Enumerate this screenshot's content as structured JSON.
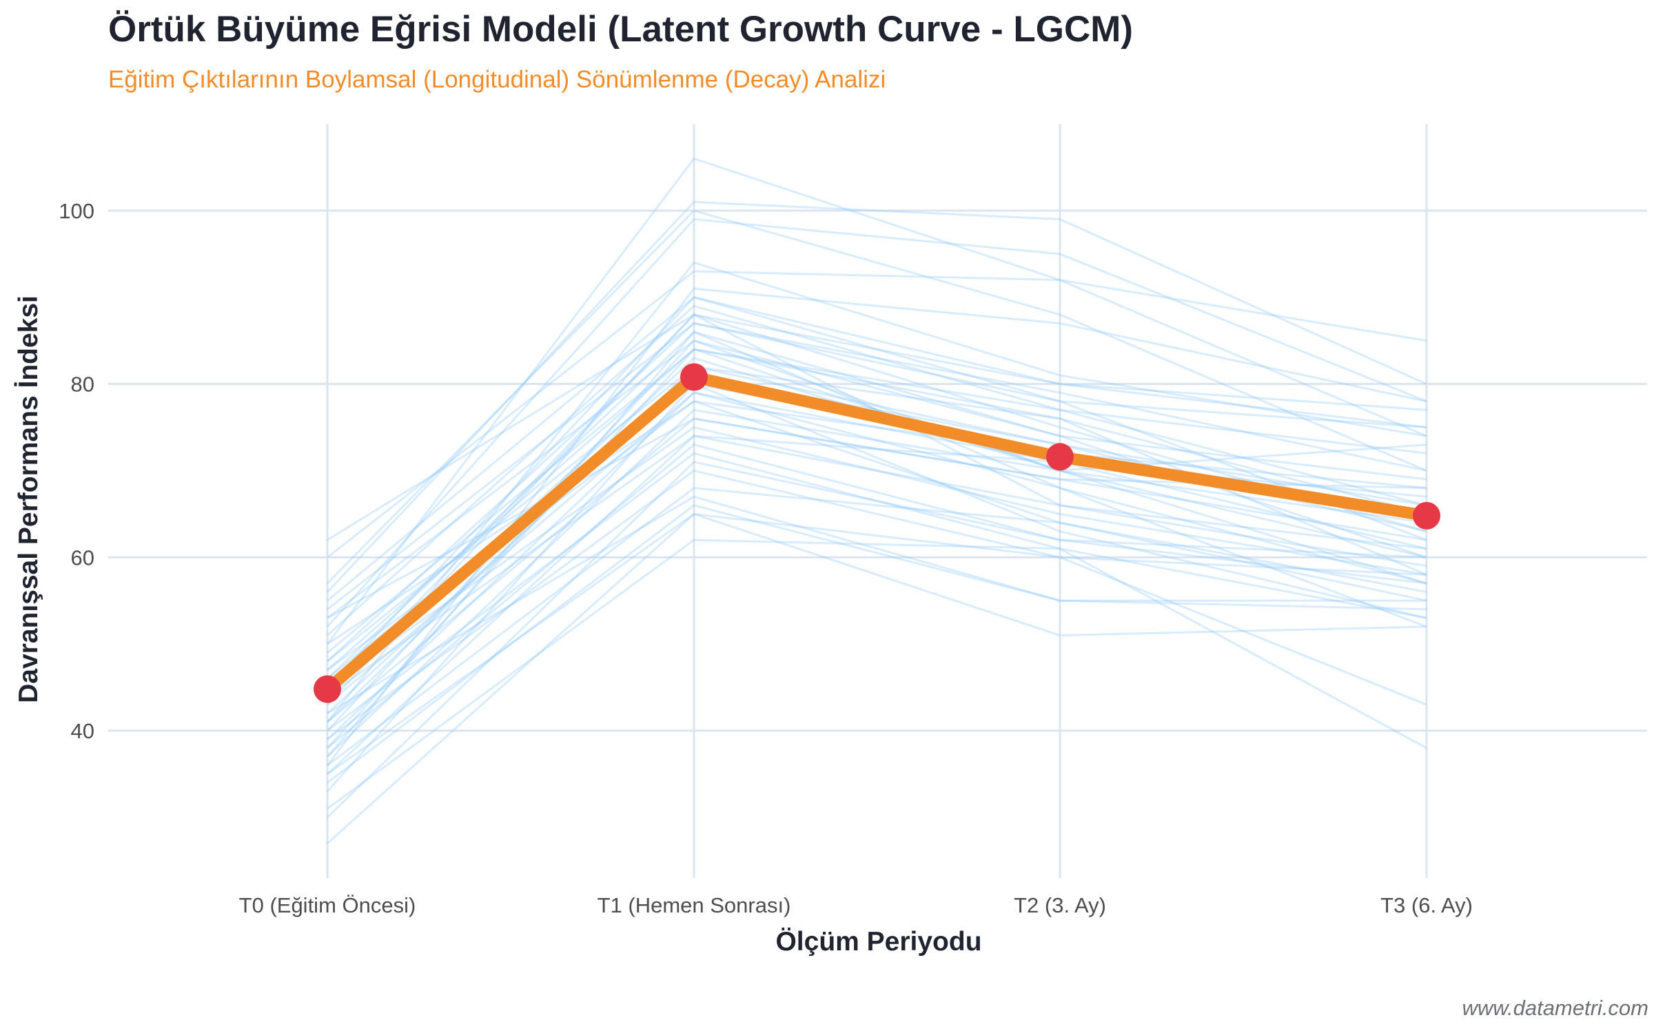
{
  "title": "Örtük Büyüme Eğrisi Modeli (Latent Growth Curve - LGCM)",
  "subtitle": "Eğitim Çıktılarının Boylamsal (Longitudinal) Sönümlenme (Decay) Analizi",
  "caption": "www.datametri.com",
  "colors": {
    "mean_line": "#f28c28",
    "mean_points": "#e63946",
    "individual_lines": "#90c8f8",
    "grid": "#dbe4ef",
    "title": "#1f2430",
    "subtitle": "#f28c28"
  },
  "chart_data": {
    "type": "line",
    "title": "Örtük Büyüme Eğrisi Modeli (Latent Growth Curve - LGCM)",
    "subtitle": "Eğitim Çıktılarının Boylamsal (Longitudinal) Sönümlenme (Decay) Analizi",
    "xlabel": "Ölçüm Periyodu",
    "ylabel": "Davranışsal Performans İndeksi",
    "categories": [
      "T0 (Eğitim Öncesi)",
      "T1 (Hemen Sonrası)",
      "T2 (3. Ay)",
      "T3 (6. Ay)"
    ],
    "ylim": [
      23,
      110
    ],
    "yticks": [
      40,
      60,
      80,
      100
    ],
    "grid": true,
    "mean_series": {
      "values": [
        44.8,
        80.8,
        71.6,
        64.8
      ]
    },
    "individual_series": [
      [
        62,
        88,
        75,
        63
      ],
      [
        60,
        93,
        92,
        85
      ],
      [
        57,
        100,
        88,
        70
      ],
      [
        56,
        101,
        99,
        80
      ],
      [
        55,
        90,
        80,
        75
      ],
      [
        54,
        87,
        78,
        62
      ],
      [
        53,
        85,
        70,
        57
      ],
      [
        52,
        99,
        95,
        78
      ],
      [
        51,
        89,
        77,
        66
      ],
      [
        50,
        106,
        92,
        74
      ],
      [
        49,
        84,
        76,
        58
      ],
      [
        48,
        82,
        73,
        63
      ],
      [
        48,
        87,
        79,
        70
      ],
      [
        47,
        78,
        64,
        55
      ],
      [
        46,
        80,
        72,
        68
      ],
      [
        46,
        86,
        74,
        60
      ],
      [
        45,
        90,
        78,
        75
      ],
      [
        45,
        75,
        65,
        58
      ],
      [
        44,
        83,
        70,
        60
      ],
      [
        44,
        74,
        71,
        61
      ],
      [
        43,
        79,
        68,
        52
      ],
      [
        43,
        88,
        80,
        77
      ],
      [
        42,
        81,
        73,
        66
      ],
      [
        42,
        67,
        55,
        54
      ],
      [
        41,
        76,
        69,
        62
      ],
      [
        41,
        82,
        76,
        65
      ],
      [
        40,
        72,
        61,
        53
      ],
      [
        40,
        85,
        74,
        69
      ],
      [
        39,
        79,
        71,
        67
      ],
      [
        39,
        70,
        60,
        43
      ],
      [
        38,
        84,
        77,
        72
      ],
      [
        38,
        73,
        62,
        60
      ],
      [
        37,
        86,
        68,
        57
      ],
      [
        37,
        77,
        70,
        64
      ],
      [
        36,
        68,
        64,
        56
      ],
      [
        36,
        91,
        87,
        78
      ],
      [
        35,
        65,
        51,
        52
      ],
      [
        35,
        74,
        66,
        59
      ],
      [
        34,
        66,
        55,
        55
      ],
      [
        33,
        80,
        63,
        53
      ],
      [
        31,
        62,
        61,
        38
      ],
      [
        30,
        71,
        62,
        57
      ],
      [
        27,
        65,
        60,
        58
      ],
      [
        47,
        84,
        70,
        73
      ],
      [
        50,
        78,
        72,
        65
      ],
      [
        44,
        88,
        66,
        61
      ],
      [
        53,
        76,
        69,
        68
      ],
      [
        41,
        94,
        81,
        74
      ]
    ]
  }
}
